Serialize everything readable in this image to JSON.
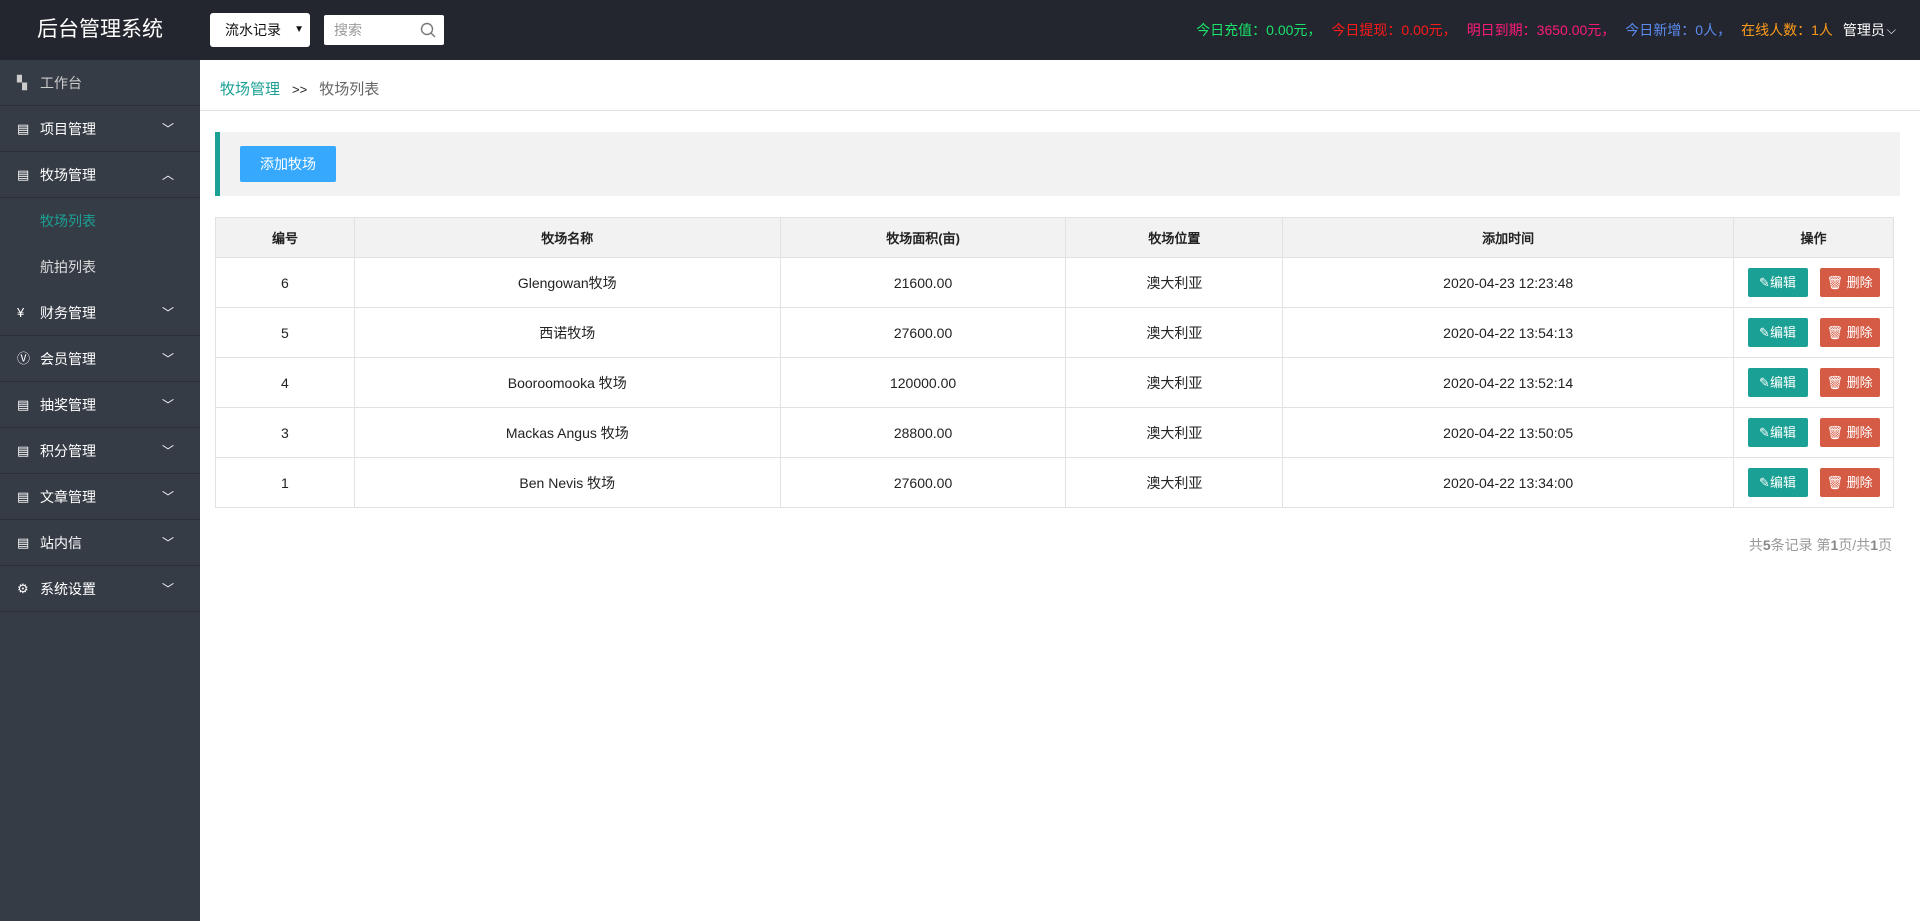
{
  "header": {
    "title": "后台管理系统",
    "select": "流水记录",
    "search_placeholder": "搜索",
    "stats": [
      {
        "text": "今日充值：0.00元，",
        "color": "#19e36b"
      },
      {
        "text": "今日提现：0.00元，",
        "color": "#ff1a1a"
      },
      {
        "text": "明日到期：3650.00元，",
        "color": "#ff1a7a"
      },
      {
        "text": "今日新增：0人，",
        "color": "#5b8cf0"
      },
      {
        "text": "在线人数：1人",
        "color": "#ff9b1a"
      }
    ],
    "admin": "管理员"
  },
  "sidebar": {
    "items": [
      {
        "label": "工作台",
        "icon": "dashboard-icon"
      },
      {
        "label": "项目管理",
        "icon": "clipboard-icon"
      },
      {
        "label": "牧场管理",
        "icon": "clipboard-icon",
        "expanded": true,
        "children": [
          {
            "label": "牧场列表",
            "active": true
          },
          {
            "label": "航拍列表"
          }
        ]
      },
      {
        "label": "财务管理",
        "icon": "yen-icon"
      },
      {
        "label": "会员管理",
        "icon": "vip-icon"
      },
      {
        "label": "抽奖管理",
        "icon": "document-icon"
      },
      {
        "label": "积分管理",
        "icon": "document-icon"
      },
      {
        "label": "文章管理",
        "icon": "document-icon"
      },
      {
        "label": "站内信",
        "icon": "clipboard-icon"
      },
      {
        "label": "系统设置",
        "icon": "gear-icon"
      }
    ]
  },
  "breadcrumb": {
    "parent": "牧场管理",
    "sep": ">>",
    "current": "牧场列表"
  },
  "toolbar": {
    "add_label": "添加牧场"
  },
  "table": {
    "headers": [
      "编号",
      "牧场名称",
      "牧场面积(亩)",
      "牧场位置",
      "添加时间",
      "操作"
    ],
    "rows": [
      [
        "6",
        "Glengowan牧场",
        "21600.00",
        "澳大利亚",
        "2020-04-23 12:23:48"
      ],
      [
        "5",
        "西诺牧场",
        "27600.00",
        "澳大利亚",
        "2020-04-22 13:54:13"
      ],
      [
        "4",
        "Booroomooka 牧场",
        "120000.00",
        "澳大利亚",
        "2020-04-22 13:52:14"
      ],
      [
        "3",
        "Mackas Angus 牧场",
        "28800.00",
        "澳大利亚",
        "2020-04-22 13:50:05"
      ],
      [
        "1",
        "Ben Nevis 牧场",
        "27600.00",
        "澳大利亚",
        "2020-04-22 13:34:00"
      ]
    ],
    "edit_label": "编辑",
    "delete_label": "删除"
  },
  "pager": {
    "p1": "共",
    "total": "5",
    "p2": "条记录 第",
    "page": "1",
    "p3": "页/共",
    "pages": "1",
    "p4": "页"
  }
}
